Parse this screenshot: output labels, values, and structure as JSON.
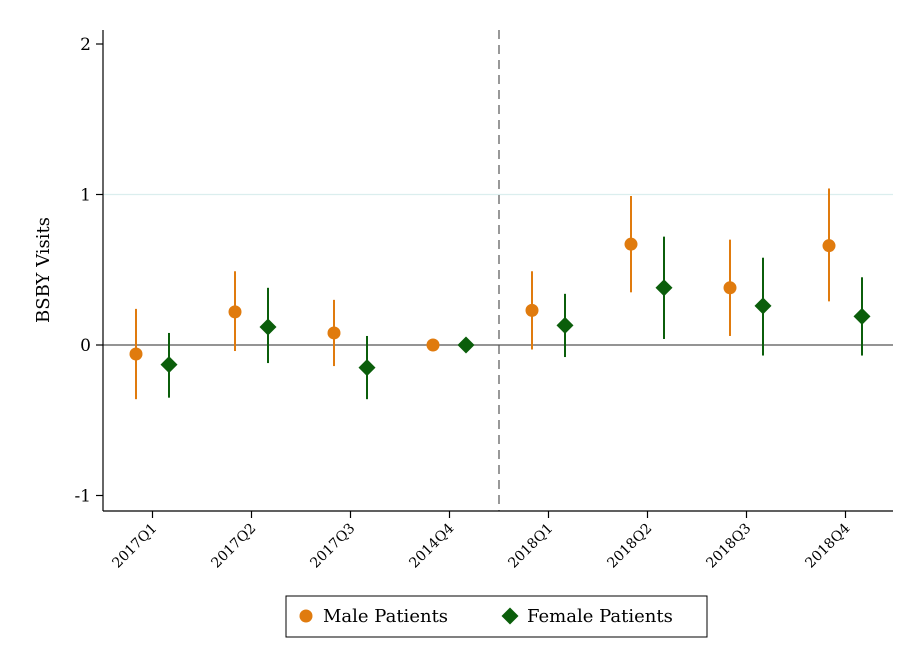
{
  "chart_data": {
    "type": "scatter",
    "ylabel": "BSBY Visits",
    "xlabel": "",
    "categories": [
      "2017Q1",
      "2017Q2",
      "2017Q3",
      "2014Q4",
      "2018Q1",
      "2018Q2",
      "2018Q3",
      "2018Q4"
    ],
    "ylim": [
      -1.1,
      2.05
    ],
    "yticks": [
      "-1",
      "0",
      "1",
      "2"
    ],
    "grid": "horizontal line at 1",
    "reference_line_y": 0,
    "event_line_between": [
      "2014Q4",
      "2018Q1"
    ],
    "legend_position": "bottom",
    "series": [
      {
        "name": "Male Patients",
        "marker": "circle",
        "color": "#e07b0e",
        "values": [
          -0.06,
          0.22,
          0.08,
          0.0,
          0.23,
          0.67,
          0.38,
          0.66
        ],
        "ci_low": [
          -0.36,
          -0.04,
          -0.14,
          0.0,
          -0.03,
          0.35,
          0.06,
          0.29
        ],
        "ci_high": [
          0.24,
          0.49,
          0.3,
          0.0,
          0.49,
          0.99,
          0.7,
          1.04
        ]
      },
      {
        "name": "Female Patients",
        "marker": "diamond",
        "color": "#0b5e0b",
        "values": [
          -0.13,
          0.12,
          -0.15,
          0.0,
          0.13,
          0.38,
          0.26,
          0.19
        ],
        "ci_low": [
          -0.35,
          -0.12,
          -0.36,
          0.0,
          -0.08,
          0.04,
          -0.07,
          -0.07
        ],
        "ci_high": [
          0.08,
          0.38,
          0.06,
          0.0,
          0.34,
          0.72,
          0.58,
          0.45
        ]
      }
    ]
  }
}
